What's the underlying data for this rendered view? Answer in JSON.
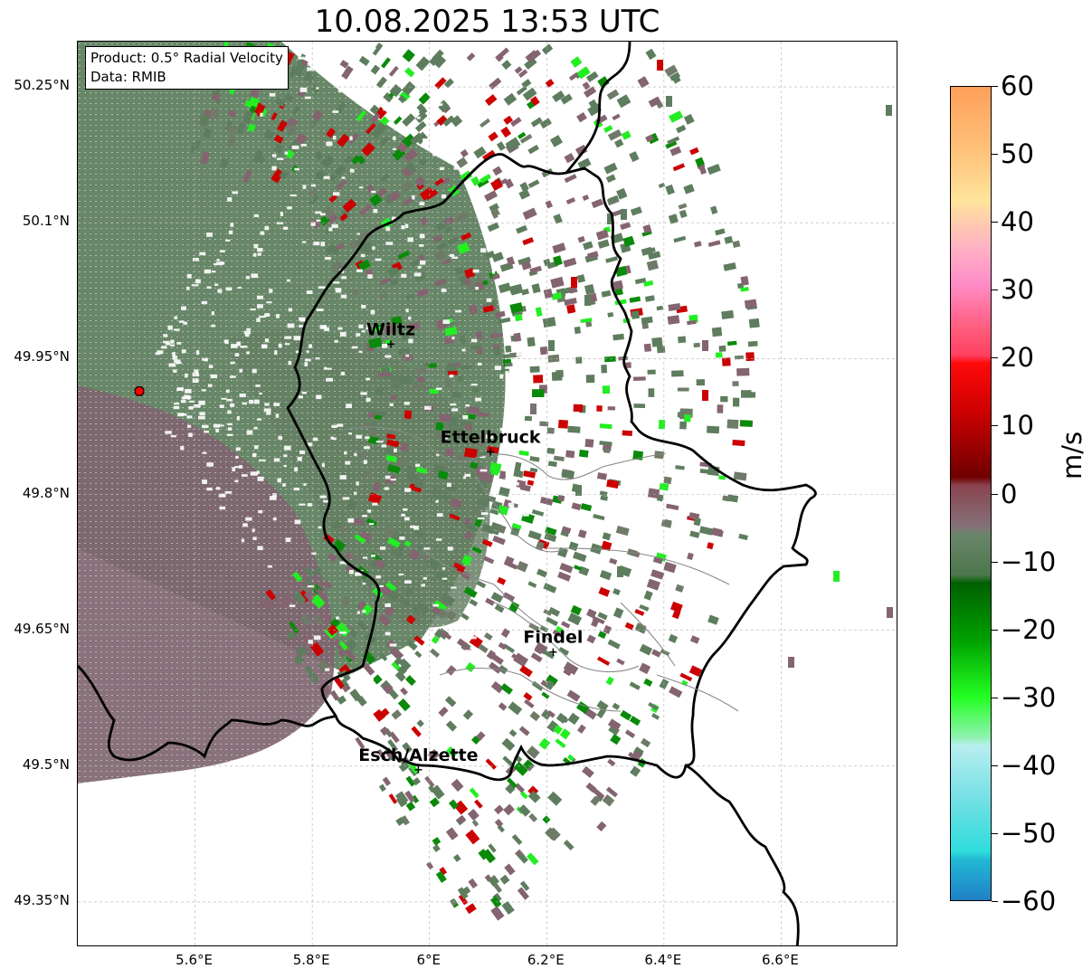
{
  "title": "10.08.2025 13:53 UTC",
  "info_box": {
    "product": "Product: 0.5° Radial Velocity",
    "data_source": "Data: RMIB"
  },
  "latitude_labels": [
    "50.25°N",
    "50.1°N",
    "49.95°N",
    "49.8°N",
    "49.65°N",
    "49.5°N",
    "49.35°N"
  ],
  "longitude_labels": [
    "5.6°E",
    "5.8°E",
    "6°E",
    "6.2°E",
    "6.4°E",
    "6.6°E"
  ],
  "map_extent": {
    "lon_min": 5.4,
    "lon_max": 6.8,
    "lat_min": 49.3,
    "lat_max": 50.3
  },
  "radar_site": {
    "lon": 5.505,
    "lat": 49.914,
    "color": "#ff0000"
  },
  "cities": [
    {
      "name": "Wiltz",
      "lon": 5.934,
      "lat": 49.966
    },
    {
      "name": "Ettelbruck",
      "lon": 6.104,
      "lat": 49.847
    },
    {
      "name": "Findel",
      "lon": 6.211,
      "lat": 49.626
    },
    {
      "name": "Esch/Alzette",
      "lon": 5.981,
      "lat": 49.496
    }
  ],
  "colorbar": {
    "label": "m/s",
    "ticks": [
      "60",
      "50",
      "40",
      "30",
      "20",
      "10",
      "0",
      "−10",
      "−20",
      "−30",
      "−40",
      "−50",
      "−60"
    ],
    "range": [
      -60,
      60
    ]
  },
  "colors": {
    "near_zero_green": "#5e7d5e",
    "near_zero_mauve": "#846470",
    "inbound_bright": "#22ee22",
    "outbound_red": "#cc0000",
    "border": "#000000",
    "canton_border": "#888888"
  }
}
